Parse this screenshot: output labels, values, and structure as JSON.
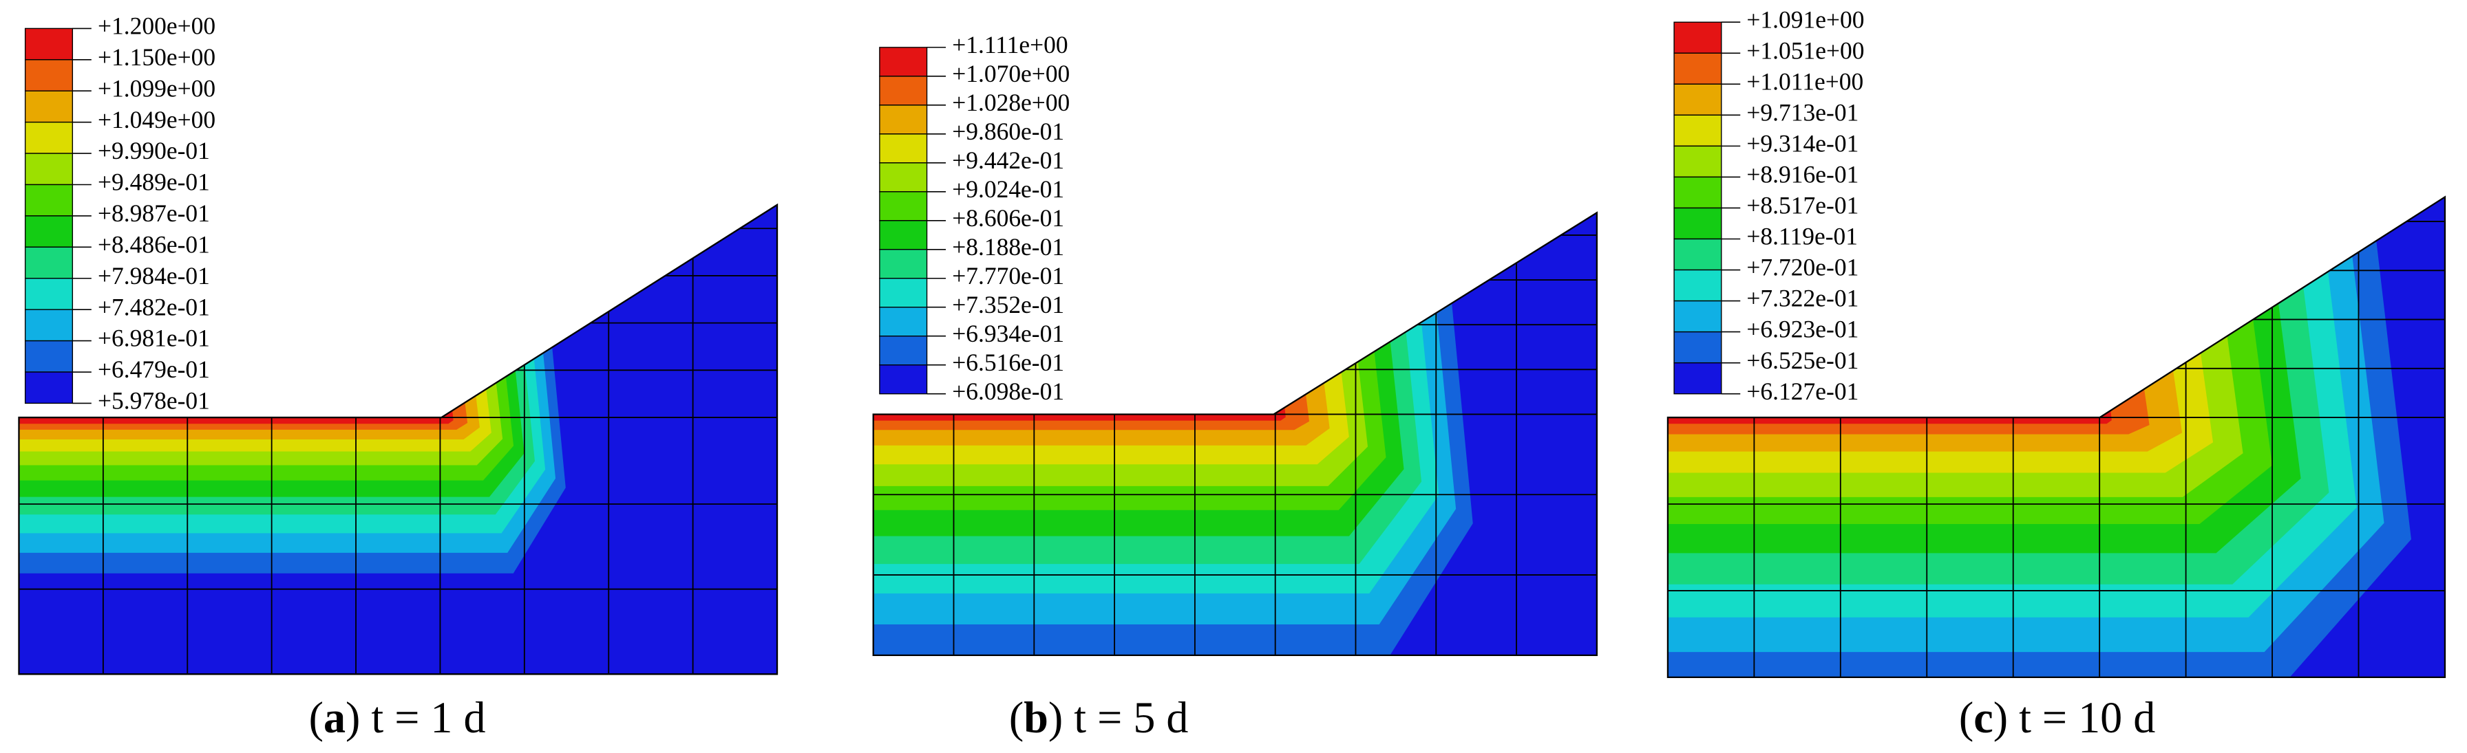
{
  "panels": [
    {
      "legend": [
        "+1.200e+00",
        "+1.150e+00",
        "+1.099e+00",
        "+1.049e+00",
        "+9.990e-01",
        "+9.489e-01",
        "+8.987e-01",
        "+8.486e-01",
        "+7.984e-01",
        "+7.482e-01",
        "+6.981e-01",
        "+6.479e-01",
        "+5.978e-01"
      ],
      "caption": {
        "open": "(",
        "label": "a",
        "rest": ") t = 1 d"
      }
    },
    {
      "legend": [
        "+1.111e+00",
        "+1.070e+00",
        "+1.028e+00",
        "+9.860e-01",
        "+9.442e-01",
        "+9.024e-01",
        "+8.606e-01",
        "+8.188e-01",
        "+7.770e-01",
        "+7.352e-01",
        "+6.934e-01",
        "+6.516e-01",
        "+6.098e-01"
      ],
      "caption": {
        "open": "(",
        "label": "b",
        "rest": ") t = 5 d"
      }
    },
    {
      "legend": [
        "+1.091e+00",
        "+1.051e+00",
        "+1.011e+00",
        "+9.713e-01",
        "+9.314e-01",
        "+8.916e-01",
        "+8.517e-01",
        "+8.119e-01",
        "+7.720e-01",
        "+7.322e-01",
        "+6.923e-01",
        "+6.525e-01",
        "+6.127e-01"
      ],
      "caption": {
        "open": "(",
        "label": "c",
        "rest": ") t = 10 d"
      }
    }
  ],
  "legend_colors": [
    "#e41414",
    "#ec600c",
    "#e8a800",
    "#dcdc00",
    "#9ce000",
    "#4cd800",
    "#14cc14",
    "#18d87c",
    "#14dcc8",
    "#10b0e4",
    "#1464dc",
    "#1414e0"
  ]
}
